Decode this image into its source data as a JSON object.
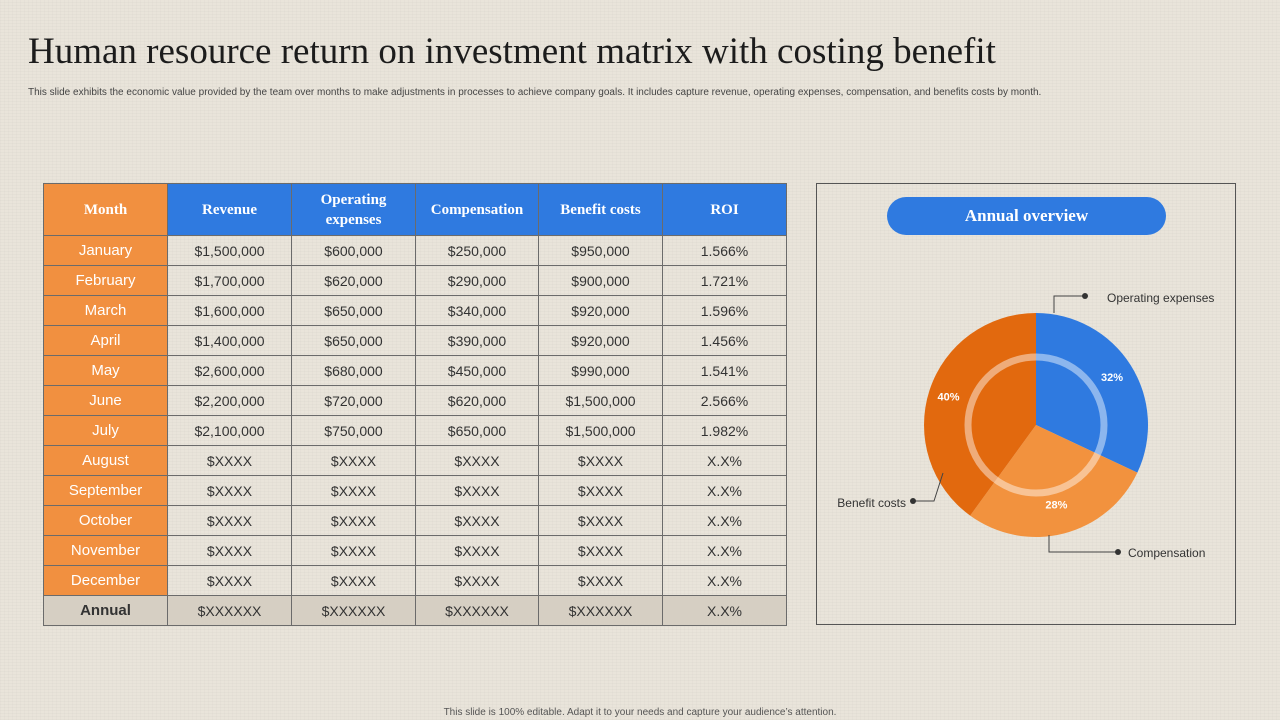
{
  "slide": {
    "title": "Human resource return on investment matrix with costing benefit",
    "subtitle": "This slide exhibits the economic value provided by the team over months to make adjustments in processes to achieve company goals. It includes capture revenue, operating expenses, compensation, and  benefits costs by month.",
    "footer": "This slide is 100% editable.  Adapt it to your needs and capture your audience’s attention."
  },
  "table": {
    "headers": [
      "Month",
      "Revenue",
      "Operating expenses",
      "Compensation",
      "Benefit costs",
      "ROI"
    ],
    "rows": [
      [
        "January",
        "$1,500,000",
        "$600,000",
        "$250,000",
        "$950,000",
        "1.566%"
      ],
      [
        "February",
        "$1,700,000",
        "$620,000",
        "$290,000",
        "$900,000",
        "1.721%"
      ],
      [
        "March",
        "$1,600,000",
        "$650,000",
        "$340,000",
        "$920,000",
        "1.596%"
      ],
      [
        "April",
        "$1,400,000",
        "$650,000",
        "$390,000",
        "$920,000",
        "1.456%"
      ],
      [
        "May",
        "$2,600,000",
        "$680,000",
        "$450,000",
        "$990,000",
        "1.541%"
      ],
      [
        "June",
        "$2,200,000",
        "$720,000",
        "$620,000",
        "$1,500,000",
        "2.566%"
      ],
      [
        "July",
        "$2,100,000",
        "$750,000",
        "$650,000",
        "$1,500,000",
        "1.982%"
      ],
      [
        "August",
        "$XXXX",
        "$XXXX",
        "$XXXX",
        "$XXXX",
        "X.X%"
      ],
      [
        "September",
        "$XXXX",
        "$XXXX",
        "$XXXX",
        "$XXXX",
        "X.X%"
      ],
      [
        "October",
        "$XXXX",
        "$XXXX",
        "$XXXX",
        "$XXXX",
        "X.X%"
      ],
      [
        "November",
        "$XXXX",
        "$XXXX",
        "$XXXX",
        "$XXXX",
        "X.X%"
      ],
      [
        "December",
        "$XXXX",
        "$XXXX",
        "$XXXX",
        "$XXXX",
        "X.X%"
      ],
      [
        "Annual",
        "$XXXXXX",
        "$XXXXXX",
        "$XXXXXX",
        "$XXXXXX",
        "X.X%"
      ]
    ]
  },
  "panel": {
    "title": "Annual overview"
  },
  "colors": {
    "blue": "#2f7ae0",
    "orange": "#f19040",
    "dark_orange": "#e2690e",
    "annual_row": "#d6cfc3"
  },
  "chart_data": {
    "type": "pie",
    "title": "Annual overview",
    "labels": [
      "Operating expenses",
      "Compensation",
      "Benefit costs"
    ],
    "values": [
      32,
      28,
      40
    ],
    "value_labels": [
      "32%",
      "28%",
      "40%"
    ],
    "colors": [
      "#2f7ae0",
      "#f2923e",
      "#e2690e"
    ],
    "legend": "callouts"
  }
}
